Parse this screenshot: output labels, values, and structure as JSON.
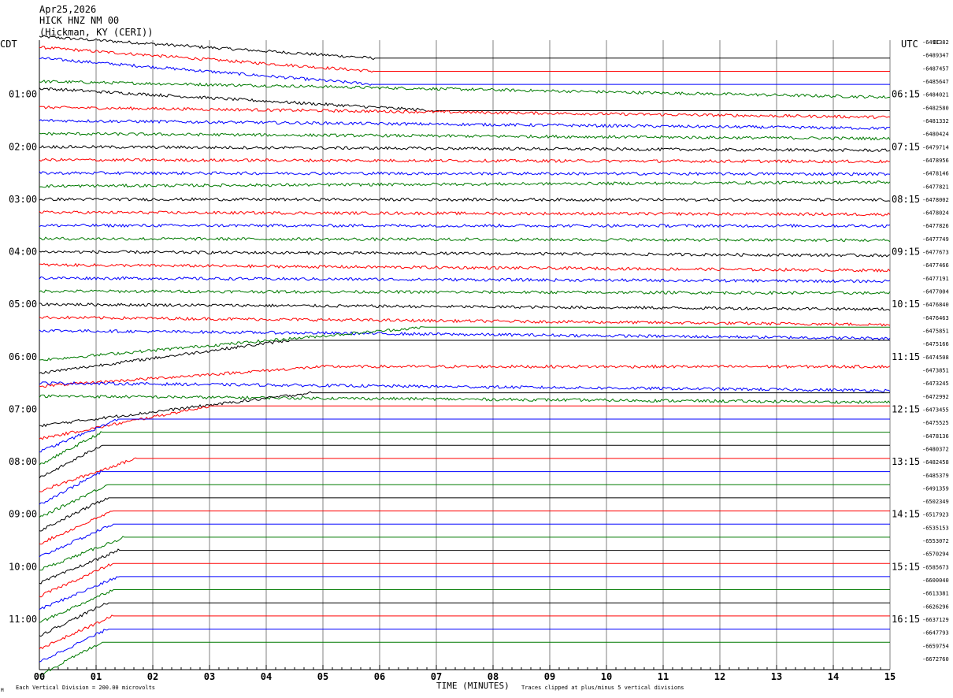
{
  "header": {
    "date": "Apr25,2026",
    "station": "HICK HNZ NM 00",
    "location": "(Hickman, KY (CERI))"
  },
  "labels": {
    "left_tz": "CDT",
    "right_tz": "UTC",
    "dc": "DC",
    "xlabel": "TIME (MINUTES)",
    "scale_note": "Each Vertical Division =  200.00 microvolts",
    "clip_note": "Traces clipped at plus/minus 5 vertical divisions",
    "corner_mark": "M"
  },
  "chart_data": {
    "type": "line",
    "subtype": "helicorder",
    "x_ticks": [
      "00",
      "01",
      "02",
      "03",
      "04",
      "05",
      "06",
      "07",
      "08",
      "09",
      "10",
      "11",
      "12",
      "13",
      "14",
      "15"
    ],
    "xlim": [
      0,
      15
    ],
    "row_count": 48,
    "cdt_labels": [
      "01:00",
      "02:00",
      "03:00",
      "04:00",
      "05:00",
      "06:00",
      "07:00",
      "08:00",
      "09:00",
      "10:00",
      "11:00"
    ],
    "utc_labels": [
      "06:15",
      "07:15",
      "08:15",
      "09:15",
      "10:15",
      "11:15",
      "12:15",
      "13:15",
      "14:15",
      "15:15",
      "16:15"
    ],
    "dc_offsets": [
      "-6491382",
      "-6489347",
      "-6487457",
      "-6485647",
      "-6484021",
      "-6482580",
      "-6481332",
      "-6480424",
      "-6479714",
      "-6478956",
      "-6478146",
      "-6477821",
      "-6478002",
      "-6478024",
      "-6477826",
      "-6477749",
      "-6477673",
      "-6477466",
      "-6477191",
      "-6477004",
      "-6476840",
      "-6476463",
      "-6475851",
      "-6475166",
      "-6474508",
      "-6473851",
      "-6473245",
      "-6472992",
      "-6473455",
      "-6475525",
      "-6478136",
      "-6480372",
      "-6482458",
      "-6485379",
      "-6491359",
      "-6502349",
      "-6517923",
      "-6535153",
      "-6553072",
      "-6570294",
      "-6585673",
      "-6600040",
      "-6613381",
      "-6626296",
      "-6637129",
      "-6647793",
      "-6659754",
      "-6672760"
    ],
    "trace_colors": [
      "#000000",
      "#ff0000",
      "#0000ff",
      "#007a00"
    ],
    "traces": [
      {
        "start": -1.6,
        "end": -6.5
      },
      {
        "start": -0.3,
        "end": -6.3
      },
      {
        "start": -0.6,
        "end": -5.9
      },
      {
        "start": -0.1,
        "end": -4.9
      },
      {
        "start": 0,
        "end": -3.6
      },
      {
        "start": 0,
        "end": -3.0
      },
      {
        "start": 0,
        "end": -2.4
      },
      {
        "start": 0,
        "end": -1.5
      },
      {
        "start": 0,
        "end": -1.1
      },
      {
        "start": 0,
        "end": -0.5
      },
      {
        "start": 0,
        "end": -0.3
      },
      {
        "start": 0,
        "end": 1.2
      },
      {
        "start": 0,
        "end": -0.2
      },
      {
        "start": 0,
        "end": -0.6
      },
      {
        "start": 0,
        "end": -0.1
      },
      {
        "start": 0,
        "end": -0.5
      },
      {
        "start": 0,
        "end": -1.1
      },
      {
        "start": 0,
        "end": -1.7
      },
      {
        "start": 0,
        "end": -1.0
      },
      {
        "start": 0,
        "end": -0.6
      },
      {
        "start": 0,
        "end": -1.5
      },
      {
        "start": 0,
        "end": -2.2
      },
      {
        "start": 0,
        "end": -2.4
      },
      {
        "start": 0,
        "end": -0.7
      },
      {
        "start": 0,
        "end": -2.0
      },
      {
        "start": 0,
        "end": -2.6
      },
      {
        "start": 0,
        "end": -2.3
      },
      {
        "start": 0,
        "end": -1.9
      },
      {
        "start": 0,
        "end": -0.3
      },
      {
        "start": 0,
        "end": 1.5
      },
      {
        "start": 0,
        "end": 0.7
      },
      {
        "start": 0,
        "end": 0.3
      },
      {
        "start": 0,
        "end": -0.4
      },
      {
        "start": 0,
        "end": -0.8
      },
      {
        "start": 0,
        "end": -0.8
      },
      {
        "start": 0,
        "end": 0.1
      },
      {
        "start": 0,
        "end": -0.1
      },
      {
        "start": 0,
        "end": -0.1
      },
      {
        "start": 0,
        "end": -0.6
      },
      {
        "start": 0,
        "end": 0.2
      },
      {
        "start": 0,
        "end": -0.2
      },
      {
        "start": 0,
        "end": 0.2
      },
      {
        "start": 0,
        "end": 0.3
      },
      {
        "start": 0,
        "end": 0.8
      },
      {
        "start": 0,
        "end": 0.3
      },
      {
        "start": 0,
        "end": 0.5
      },
      {
        "start": 0,
        "end": -0.1
      },
      {
        "start": 0,
        "end": 1.2
      }
    ],
    "clipped_segments": [
      {
        "row": 0,
        "x0": 0,
        "x1": 5.9,
        "from": 1.6,
        "to": -5
      },
      {
        "row": 1,
        "x0": 0,
        "x1": 5.9,
        "from": 2.3,
        "to": -5
      },
      {
        "row": 2,
        "x0": 0,
        "x1": 5.9,
        "from": 3.0,
        "to": -5
      },
      {
        "row": 4,
        "x0": 0,
        "x1": 7.0,
        "from": 1.8,
        "to": -5
      },
      {
        "row": 23,
        "x0": 0,
        "x1": 6.8,
        "from": -5,
        "to": 5
      },
      {
        "row": 24,
        "x0": 0,
        "x1": 4.4,
        "from": -5,
        "to": 5
      },
      {
        "row": 25,
        "x0": 0,
        "x1": 5.0,
        "from": -5,
        "to": 1.0
      },
      {
        "row": 28,
        "x0": 0,
        "x1": 4.8,
        "from": -5,
        "to": 5
      },
      {
        "row": 29,
        "x0": 0,
        "x1": 3.0,
        "from": -5,
        "to": 5
      },
      {
        "row": 30,
        "x0": 0,
        "x1": 1.4,
        "from": -5,
        "to": 5
      },
      {
        "row": 31,
        "x0": 0,
        "x1": 1.1,
        "from": -5,
        "to": 5
      },
      {
        "row": 32,
        "x0": 0,
        "x1": 1.1,
        "from": -5,
        "to": 5
      },
      {
        "row": 33,
        "x0": 0,
        "x1": 1.7,
        "from": -5,
        "to": 5
      },
      {
        "row": 34,
        "x0": 0,
        "x1": 1.1,
        "from": -5,
        "to": 5
      },
      {
        "row": 35,
        "x0": 0,
        "x1": 1.2,
        "from": -5,
        "to": 5
      },
      {
        "row": 36,
        "x0": 0,
        "x1": 1.2,
        "from": -5,
        "to": 5
      },
      {
        "row": 37,
        "x0": 0,
        "x1": 1.3,
        "from": -5,
        "to": 5
      },
      {
        "row": 38,
        "x0": 0,
        "x1": 1.3,
        "from": -5,
        "to": 5
      },
      {
        "row": 39,
        "x0": 0,
        "x1": 1.5,
        "from": -5,
        "to": 5
      },
      {
        "row": 40,
        "x0": 0,
        "x1": 1.4,
        "from": -5,
        "to": 5
      },
      {
        "row": 41,
        "x0": 0,
        "x1": 1.3,
        "from": -5,
        "to": 5
      },
      {
        "row": 42,
        "x0": 0,
        "x1": 1.4,
        "from": -5,
        "to": 5
      },
      {
        "row": 43,
        "x0": 0,
        "x1": 1.3,
        "from": -5,
        "to": 5
      },
      {
        "row": 44,
        "x0": 0,
        "x1": 1.2,
        "from": -5,
        "to": 5
      },
      {
        "row": 45,
        "x0": 0,
        "x1": 1.3,
        "from": -5,
        "to": 5
      },
      {
        "row": 46,
        "x0": 0,
        "x1": 1.2,
        "from": -5,
        "to": 5
      },
      {
        "row": 47,
        "x0": 0,
        "x1": 1.1,
        "from": -5,
        "to": 5
      }
    ],
    "grid": true,
    "legend": "none"
  }
}
